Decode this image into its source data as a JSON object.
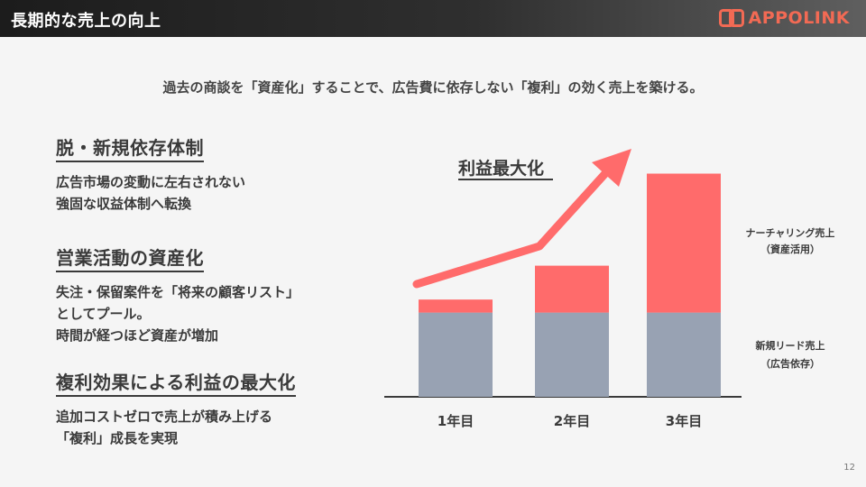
{
  "header": {
    "title": "長期的な売上の向上",
    "logo_text": "APPOLINK",
    "logo_color": "#f26a54"
  },
  "subtitle": "過去の商談を「資産化」することで、広告費に依存しない「複利」の効く売上を築ける。",
  "points": [
    {
      "title": "脱・新規依存体制",
      "lines": [
        "広告市場の変動に左右されない",
        "強固な収益体制へ転換"
      ]
    },
    {
      "title": "営業活動の資産化",
      "lines": [
        "失注・保留案件を「将来の顧客リスト」",
        "としてプール。",
        "時間が経つほど資産が増加"
      ]
    },
    {
      "title": "複利効果による利益の最大化",
      "lines": [
        "追加コストゼロで売上が積み上げる",
        "「複利」成長を実現"
      ]
    }
  ],
  "chart_data": {
    "type": "bar",
    "stacked": true,
    "title": "利益最大化",
    "categories": [
      "1年目",
      "2年目",
      "3年目"
    ],
    "series": [
      {
        "name": "新規リード売上（広告依存）",
        "label_lines": [
          "新規リード売上",
          "（広告依存）"
        ],
        "color": "#98a2b3",
        "values": [
          97,
          97,
          97
        ]
      },
      {
        "name": "ナーチャリング売上（資産活用）",
        "label_lines": [
          "ナーチャリング売上",
          "（資産活用）"
        ],
        "color": "#ff6b6b",
        "values": [
          15,
          54,
          160
        ]
      }
    ],
    "trend_arrow": {
      "color": "#ff6b6b",
      "direction": "upward"
    },
    "ylim": [
      0,
      270
    ],
    "grid": false,
    "legend": "right"
  },
  "page_number": "12"
}
